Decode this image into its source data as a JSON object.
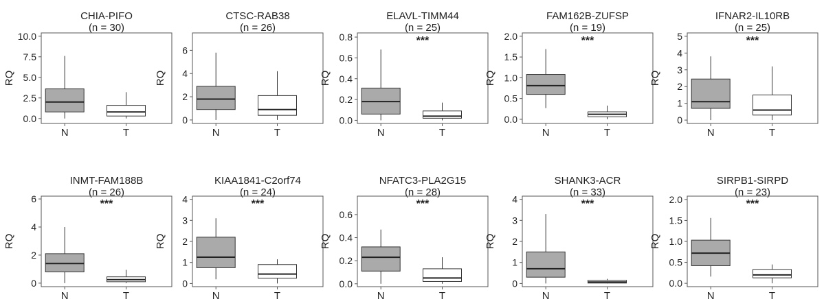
{
  "y_axis_label": "RQ",
  "chart_data": [
    {
      "type": "boxplot",
      "title": "CHIA-PIFO",
      "subtitle": "(n = 30)",
      "ylabel": "RQ",
      "ylim": [
        -0.6,
        10.4
      ],
      "yticks": [
        "0.0",
        "2.5",
        "5.0",
        "7.5",
        "10.0"
      ],
      "categories": [
        "N",
        "T"
      ],
      "significance": "",
      "boxes": [
        {
          "category": "N",
          "min": 0.0,
          "q1": 0.8,
          "median": 2.0,
          "q3": 3.6,
          "max": 7.6,
          "fill": "#aaaaaa"
        },
        {
          "category": "T",
          "min": 0.0,
          "q1": 0.3,
          "median": 0.8,
          "q3": 1.6,
          "max": 3.2,
          "fill": "#ffffff"
        }
      ]
    },
    {
      "type": "boxplot",
      "title": "CTSC-RAB38",
      "subtitle": "(n = 26)",
      "ylabel": "RQ",
      "ylim": [
        -0.3,
        7.5
      ],
      "yticks": [
        "0",
        "2",
        "4",
        "6"
      ],
      "categories": [
        "N",
        "T"
      ],
      "significance": "",
      "boxes": [
        {
          "category": "N",
          "min": 0.0,
          "q1": 0.9,
          "median": 1.8,
          "q3": 2.9,
          "max": 5.8,
          "fill": "#aaaaaa"
        },
        {
          "category": "T",
          "min": 0.0,
          "q1": 0.4,
          "median": 0.9,
          "q3": 2.1,
          "max": 4.2,
          "fill": "#ffffff"
        }
      ]
    },
    {
      "type": "boxplot",
      "title": "ELAVL-TIMM44",
      "subtitle": "(n = 25)",
      "ylabel": "RQ",
      "ylim": [
        -0.03,
        0.84
      ],
      "yticks": [
        "0.0",
        "0.2",
        "0.4",
        "0.6",
        "0.8"
      ],
      "categories": [
        "N",
        "T"
      ],
      "significance": "***",
      "boxes": [
        {
          "category": "N",
          "min": 0.0,
          "q1": 0.06,
          "median": 0.18,
          "q3": 0.31,
          "max": 0.68,
          "fill": "#aaaaaa"
        },
        {
          "category": "T",
          "min": 0.0,
          "q1": 0.02,
          "median": 0.04,
          "q3": 0.09,
          "max": 0.17,
          "fill": "#ffffff"
        }
      ]
    },
    {
      "type": "boxplot",
      "title": "FAM162B-ZUFSP",
      "subtitle": "(n = 19)",
      "ylabel": "RQ",
      "ylim": [
        -0.1,
        2.08
      ],
      "yticks": [
        "0.0",
        "0.5",
        "1.0",
        "1.5",
        "2.0"
      ],
      "categories": [
        "N",
        "T"
      ],
      "significance": "***",
      "boxes": [
        {
          "category": "N",
          "min": 0.27,
          "q1": 0.6,
          "median": 0.81,
          "q3": 1.08,
          "max": 1.69,
          "fill": "#aaaaaa"
        },
        {
          "category": "T",
          "min": 0.0,
          "q1": 0.06,
          "median": 0.12,
          "q3": 0.18,
          "max": 0.33,
          "fill": "#ffffff"
        }
      ]
    },
    {
      "type": "boxplot",
      "title": "IFNAR2-IL10RB",
      "subtitle": "(n = 25)",
      "ylabel": "RQ",
      "ylim": [
        -0.2,
        5.2
      ],
      "yticks": [
        "0",
        "1",
        "2",
        "3",
        "4",
        "5"
      ],
      "categories": [
        "N",
        "T"
      ],
      "significance": "***",
      "boxes": [
        {
          "category": "N",
          "min": 0.0,
          "q1": 0.7,
          "median": 1.1,
          "q3": 2.45,
          "max": 3.8,
          "fill": "#aaaaaa"
        },
        {
          "category": "T",
          "min": 0.0,
          "q1": 0.3,
          "median": 0.6,
          "q3": 1.5,
          "max": 3.2,
          "fill": "#ffffff"
        }
      ]
    },
    {
      "type": "boxplot",
      "title": "INMT-FAM188B",
      "subtitle": "(n = 26)",
      "ylabel": "RQ",
      "ylim": [
        -0.25,
        6.2
      ],
      "yticks": [
        "0",
        "2",
        "4",
        "6"
      ],
      "categories": [
        "N",
        "T"
      ],
      "significance": "***",
      "boxes": [
        {
          "category": "N",
          "min": 0.0,
          "q1": 0.8,
          "median": 1.4,
          "q3": 2.1,
          "max": 4.0,
          "fill": "#aaaaaa"
        },
        {
          "category": "T",
          "min": 0.0,
          "q1": 0.1,
          "median": 0.25,
          "q3": 0.45,
          "max": 0.95,
          "fill": "#ffffff"
        }
      ]
    },
    {
      "type": "boxplot",
      "title": "KIAA1841-C2orf74",
      "subtitle": "(n = 24)",
      "ylabel": "RQ",
      "ylim": [
        -0.15,
        4.15
      ],
      "yticks": [
        "0",
        "1",
        "2",
        "3",
        "4"
      ],
      "categories": [
        "N",
        "T"
      ],
      "significance": "***",
      "boxes": [
        {
          "category": "N",
          "min": 0.2,
          "q1": 0.75,
          "median": 1.25,
          "q3": 2.2,
          "max": 3.1,
          "fill": "#aaaaaa"
        },
        {
          "category": "T",
          "min": 0.0,
          "q1": 0.25,
          "median": 0.45,
          "q3": 0.9,
          "max": 1.15,
          "fill": "#ffffff"
        }
      ]
    },
    {
      "type": "boxplot",
      "title": "NFATC3-PLA2G15",
      "subtitle": "(n = 28)",
      "ylabel": "RQ",
      "ylim": [
        -0.025,
        0.76
      ],
      "yticks": [
        "0.0",
        "0.2",
        "0.4",
        "0.6"
      ],
      "categories": [
        "N",
        "T"
      ],
      "significance": "***",
      "boxes": [
        {
          "category": "N",
          "min": 0.0,
          "q1": 0.11,
          "median": 0.23,
          "q3": 0.32,
          "max": 0.47,
          "fill": "#aaaaaa"
        },
        {
          "category": "T",
          "min": 0.0,
          "q1": 0.02,
          "median": 0.05,
          "q3": 0.13,
          "max": 0.23,
          "fill": "#ffffff"
        }
      ]
    },
    {
      "type": "boxplot",
      "title": "SHANK3-ACR",
      "subtitle": "(n = 33)",
      "ylabel": "RQ",
      "ylim": [
        -0.15,
        4.15
      ],
      "yticks": [
        "0",
        "1",
        "2",
        "3",
        "4"
      ],
      "categories": [
        "N",
        "T"
      ],
      "significance": "***",
      "boxes": [
        {
          "category": "N",
          "min": 0.0,
          "q1": 0.3,
          "median": 0.7,
          "q3": 1.5,
          "max": 3.3,
          "fill": "#aaaaaa"
        },
        {
          "category": "T",
          "min": 0.0,
          "q1": 0.02,
          "median": 0.07,
          "q3": 0.15,
          "max": 0.22,
          "fill": "#ffffff"
        }
      ]
    },
    {
      "type": "boxplot",
      "title": "SIRPB1-SIRPD",
      "subtitle": "(n = 23)",
      "ylabel": "RQ",
      "ylim": [
        -0.08,
        2.08
      ],
      "yticks": [
        "0.0",
        "0.5",
        "1.0",
        "1.5",
        "2.0"
      ],
      "categories": [
        "N",
        "T"
      ],
      "significance": "***",
      "boxes": [
        {
          "category": "N",
          "min": 0.16,
          "q1": 0.42,
          "median": 0.72,
          "q3": 1.03,
          "max": 1.56,
          "fill": "#aaaaaa"
        },
        {
          "category": "T",
          "min": 0.0,
          "q1": 0.13,
          "median": 0.2,
          "q3": 0.33,
          "max": 0.45,
          "fill": "#ffffff"
        }
      ]
    }
  ]
}
